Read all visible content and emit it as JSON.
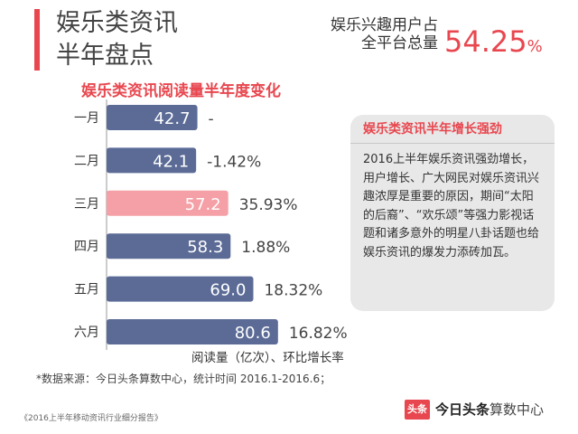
{
  "header": {
    "title_line1": "娱乐类资讯",
    "title_line2": "半年盘点",
    "stat_label_line1": "娱乐兴趣用户占",
    "stat_label_line2": "全平台总量",
    "stat_value": "54.25",
    "stat_unit": "%"
  },
  "colors": {
    "accent": "#e8474f",
    "bar": "#5b6b96",
    "bar_highlight": "#f4a0a6"
  },
  "chart_data": {
    "type": "bar",
    "orientation": "horizontal",
    "title": "娱乐类资讯阅读量半年度变化",
    "xlabel": "阅读量（亿次）、环比增长率",
    "categories": [
      "一月",
      "二月",
      "三月",
      "四月",
      "五月",
      "六月"
    ],
    "values": [
      42.7,
      42.1,
      57.2,
      58.3,
      69.0,
      80.6
    ],
    "value_labels": [
      "42.7",
      "42.1",
      "57.2",
      "58.3",
      "69.0",
      "80.6"
    ],
    "growth_labels": [
      "-",
      "-1.42%",
      "35.93%",
      "1.88%",
      "18.32%",
      "16.82%"
    ],
    "highlight_index": 2,
    "xlim": [
      0,
      90
    ],
    "grid": false,
    "legend": "none"
  },
  "panel": {
    "title": "娱乐类资讯半年增长强劲",
    "body": "2016上半年娱乐资讯强劲增长，用户增长、广大网民对娱乐资讯兴趣浓厚是重要的原因，期间“太阳的后裔”、“欢乐颂”等强力影视话题和诸多意外的明星八卦话题也给娱乐资讯的爆发力添砖加瓦。"
  },
  "footer": {
    "source": "*数据来源：今日头条算数中心，统计时间 2016.1-2016.6；",
    "report": "《2016上半年移动资讯行业细分报告》",
    "brand_logo": "头条",
    "brand_name": "今日头条",
    "brand_sub": "算数中心"
  }
}
